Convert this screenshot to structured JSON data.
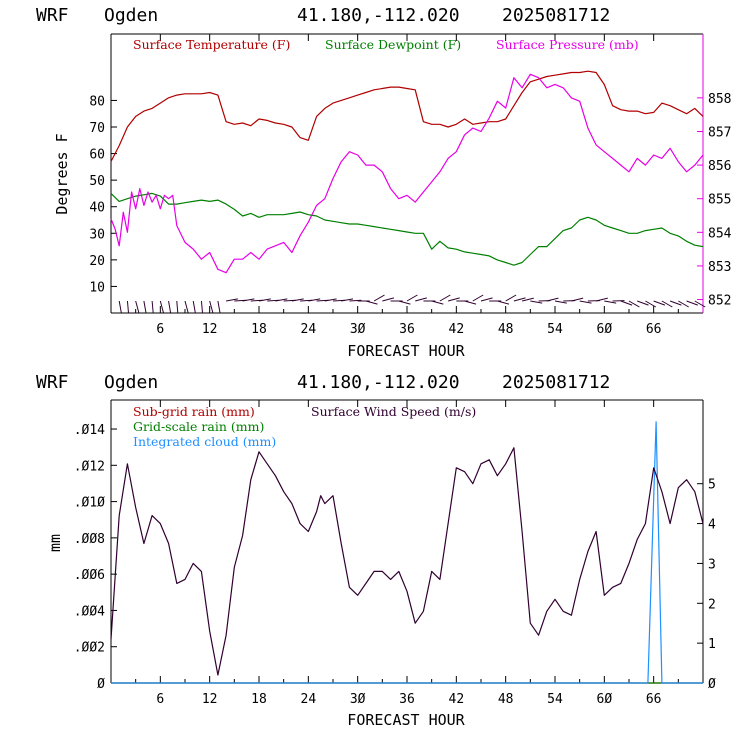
{
  "chart_data": [
    {
      "type": "line",
      "header": {
        "model": "WRF",
        "station": "Ogden",
        "coords": "41.180,-112.020",
        "run": "2025081712"
      },
      "xlabel": "FORECAST HOUR",
      "ylabel": "Degrees F",
      "xlim": [
        0,
        72
      ],
      "ylim": [
        0,
        105
      ],
      "y2lim": [
        851.6,
        859.9
      ],
      "xticks": [
        6,
        12,
        18,
        24,
        30,
        36,
        42,
        48,
        54,
        60,
        66
      ],
      "xtick_labels": [
        "6",
        "12",
        "18",
        "24",
        "3Ø",
        "36",
        "42",
        "48",
        "54",
        "6Ø",
        "66"
      ],
      "yticks": [
        10,
        20,
        30,
        40,
        50,
        60,
        70,
        80
      ],
      "y2ticks": [
        852,
        853,
        854,
        855,
        856,
        857,
        858
      ],
      "legend_placement": "top",
      "series": [
        {
          "name": "Surface Temperature (F)",
          "color": "#b00000",
          "axis": "left",
          "x": [
            0,
            1,
            2,
            3,
            4,
            5,
            6,
            7,
            8,
            9,
            10,
            11,
            12,
            13,
            14,
            15,
            16,
            17,
            18,
            19,
            20,
            21,
            22,
            23,
            24,
            25,
            26,
            27,
            28,
            29,
            30,
            31,
            32,
            33,
            34,
            35,
            36,
            37,
            38,
            39,
            40,
            41,
            42,
            43,
            44,
            45,
            46,
            47,
            48,
            49,
            50,
            51,
            52,
            53,
            54,
            55,
            56,
            57,
            58,
            59,
            60,
            61,
            62,
            63,
            64,
            65,
            66,
            67,
            68,
            69,
            70,
            71,
            72
          ],
          "values": [
            57,
            63,
            70,
            74,
            76,
            77,
            79,
            81,
            82,
            82.5,
            82.5,
            82.5,
            83,
            82,
            72,
            71,
            71.5,
            70.5,
            73,
            72.5,
            71.5,
            71,
            70,
            66,
            65,
            74,
            77,
            79,
            80,
            81,
            82,
            83,
            84,
            84.5,
            85,
            85,
            84.5,
            84,
            72,
            71,
            71,
            70,
            71,
            73,
            71,
            71.5,
            72,
            72,
            73,
            78,
            83,
            87,
            88,
            89,
            89.5,
            90,
            90.5,
            90.5,
            91,
            90.5,
            86,
            78,
            76.5,
            76,
            76,
            75,
            75.5,
            79,
            78,
            76.5,
            75,
            77,
            74
          ]
        },
        {
          "name": "Surface Dewpoint (F)",
          "color": "#008000",
          "axis": "left",
          "x": [
            0,
            1,
            2,
            3,
            4,
            5,
            6,
            7,
            8,
            9,
            10,
            11,
            12,
            13,
            14,
            15,
            16,
            17,
            18,
            19,
            20,
            21,
            22,
            23,
            24,
            25,
            26,
            27,
            28,
            29,
            30,
            31,
            32,
            33,
            34,
            35,
            36,
            37,
            38,
            39,
            40,
            41,
            42,
            43,
            44,
            45,
            46,
            47,
            48,
            49,
            50,
            51,
            52,
            53,
            54,
            55,
            56,
            57,
            58,
            59,
            60,
            61,
            62,
            63,
            64,
            65,
            66,
            67,
            68,
            69,
            70,
            71,
            72
          ],
          "values": [
            45,
            42,
            43,
            44,
            44.5,
            45,
            44,
            41,
            41,
            41.5,
            42,
            42.5,
            42,
            42.5,
            41,
            39,
            36.5,
            37.5,
            36,
            37,
            37,
            37,
            37.5,
            38,
            37,
            36.5,
            35,
            34.5,
            34,
            33.5,
            33.5,
            33,
            32.5,
            32,
            31.5,
            31,
            30.5,
            30,
            30,
            24,
            27,
            24.5,
            24,
            23,
            22.5,
            22,
            21.5,
            20,
            19,
            18,
            19,
            22,
            25,
            25,
            28,
            31,
            32,
            35,
            36,
            35,
            33,
            32,
            31,
            30,
            30,
            31,
            31.5,
            32,
            30,
            29,
            27,
            25.5,
            25
          ]
        },
        {
          "name": "Surface Pressure (mb)",
          "color": "#e600e6",
          "axis": "right",
          "x": [
            0,
            0.5,
            1,
            1.5,
            2,
            2.5,
            3,
            3.5,
            4,
            4.5,
            5,
            5.5,
            6,
            6.5,
            7,
            7.5,
            8,
            9,
            10,
            11,
            12,
            13,
            14,
            15,
            16,
            17,
            18,
            19,
            20,
            21,
            22,
            23,
            24,
            25,
            26,
            27,
            28,
            29,
            30,
            31,
            32,
            33,
            34,
            35,
            36,
            37,
            38,
            39,
            40,
            41,
            42,
            43,
            44,
            45,
            46,
            47,
            48,
            49,
            50,
            51,
            52,
            53,
            54,
            55,
            56,
            57,
            58,
            59,
            60,
            61,
            62,
            63,
            64,
            65,
            66,
            67,
            68,
            69,
            70,
            71,
            72
          ],
          "values": [
            854.4,
            854.1,
            853.6,
            854.6,
            854.0,
            855.2,
            854.7,
            855.3,
            854.8,
            855.2,
            854.9,
            855.1,
            854.7,
            855.1,
            855.0,
            855.1,
            854.2,
            853.7,
            853.5,
            853.2,
            853.4,
            852.9,
            852.8,
            853.2,
            853.2,
            853.4,
            853.2,
            853.5,
            853.6,
            853.7,
            853.4,
            853.9,
            854.3,
            854.8,
            855.0,
            855.6,
            856.1,
            856.4,
            856.3,
            856.0,
            856.0,
            855.8,
            855.3,
            855.0,
            855.1,
            854.9,
            855.2,
            855.5,
            855.8,
            856.2,
            856.4,
            856.9,
            857.1,
            857.0,
            857.4,
            857.9,
            857.7,
            858.6,
            858.3,
            858.7,
            858.6,
            858.3,
            858.4,
            858.3,
            858.0,
            857.9,
            857.1,
            856.6,
            856.4,
            856.2,
            856.0,
            855.8,
            856.2,
            856.0,
            856.3,
            856.2,
            856.5,
            856.1,
            855.8,
            856.0,
            856.3
          ]
        }
      ],
      "wind_barbs": "present along bottom of panel"
    },
    {
      "type": "line",
      "header": {
        "model": "WRF",
        "station": "Ogden",
        "coords": "41.180,-112.020",
        "run": "2025081712"
      },
      "xlabel": "FORECAST HOUR",
      "ylabel": "mm",
      "xlim": [
        0,
        72
      ],
      "ylim": [
        0,
        0.0156
      ],
      "y2lim": [
        0,
        7.1
      ],
      "xticks": [
        6,
        12,
        18,
        24,
        30,
        36,
        42,
        48,
        54,
        60,
        66
      ],
      "xtick_labels": [
        "6",
        "12",
        "18",
        "24",
        "3Ø",
        "36",
        "42",
        "48",
        "54",
        "6Ø",
        "66"
      ],
      "yticks": [
        0,
        0.002,
        0.004,
        0.006,
        0.008,
        0.01,
        0.012,
        0.014
      ],
      "ytick_labels": [
        "Ø",
        ".ØØ2",
        ".ØØ4",
        ".ØØ6",
        ".ØØ8",
        ".Ø1Ø",
        ".Ø12",
        ".Ø14"
      ],
      "y2ticks": [
        0,
        1,
        2,
        3,
        4,
        5
      ],
      "y2tick_labels": [
        "Ø",
        "1",
        "2",
        "3",
        "4",
        "5"
      ],
      "legend_placement": "top-left",
      "series": [
        {
          "name": "Sub-grid rain (mm)",
          "color": "#b00000",
          "axis": "left",
          "x": [
            0,
            72
          ],
          "values": [
            0,
            0
          ]
        },
        {
          "name": "Grid-scale rain (mm)",
          "color": "#008000",
          "axis": "left",
          "x": [
            0,
            72
          ],
          "values": [
            0,
            0
          ]
        },
        {
          "name": "Integrated cloud (mm)",
          "color": "#1e90ff",
          "axis": "left",
          "x": [
            0,
            65.3,
            66.0,
            66.3,
            67.0,
            72
          ],
          "values": [
            0,
            0,
            0.0102,
            0.0144,
            0,
            0
          ]
        },
        {
          "name": "Surface Wind Speed (m/s)",
          "color": "#300030",
          "axis": "right",
          "x": [
            0,
            1,
            2,
            3,
            4,
            5,
            6,
            7,
            8,
            9,
            10,
            11,
            12,
            13,
            14,
            15,
            16,
            17,
            18,
            19,
            20,
            21,
            22,
            23,
            24,
            25,
            25.5,
            26,
            27,
            28,
            29,
            30,
            31,
            32,
            33,
            34,
            35,
            36,
            37,
            38,
            39,
            40,
            41,
            42,
            43,
            44,
            45,
            46,
            47,
            48,
            49,
            50,
            51,
            52,
            53,
            54,
            55,
            56,
            57,
            58,
            59,
            60,
            61,
            62,
            63,
            64,
            65,
            66,
            67,
            68,
            69,
            70,
            71,
            72
          ],
          "values": [
            1.1,
            4.2,
            5.5,
            4.4,
            3.5,
            4.2,
            4.0,
            3.5,
            2.5,
            2.6,
            3.0,
            2.8,
            1.3,
            0.2,
            1.2,
            2.9,
            3.7,
            5.1,
            5.8,
            5.5,
            5.2,
            4.8,
            4.5,
            4.0,
            3.8,
            4.3,
            4.7,
            4.5,
            4.7,
            3.5,
            2.4,
            2.2,
            2.5,
            2.8,
            2.8,
            2.6,
            2.8,
            2.3,
            1.5,
            1.8,
            2.8,
            2.6,
            4.0,
            5.4,
            5.3,
            5.0,
            5.5,
            5.6,
            5.2,
            5.5,
            5.9,
            3.8,
            1.5,
            1.2,
            1.8,
            2.1,
            1.8,
            1.7,
            2.6,
            3.3,
            3.8,
            2.2,
            2.4,
            2.5,
            3.0,
            3.6,
            4.0,
            5.4,
            4.8,
            4.0,
            4.9,
            5.1,
            4.8,
            4.0
          ]
        }
      ]
    }
  ]
}
